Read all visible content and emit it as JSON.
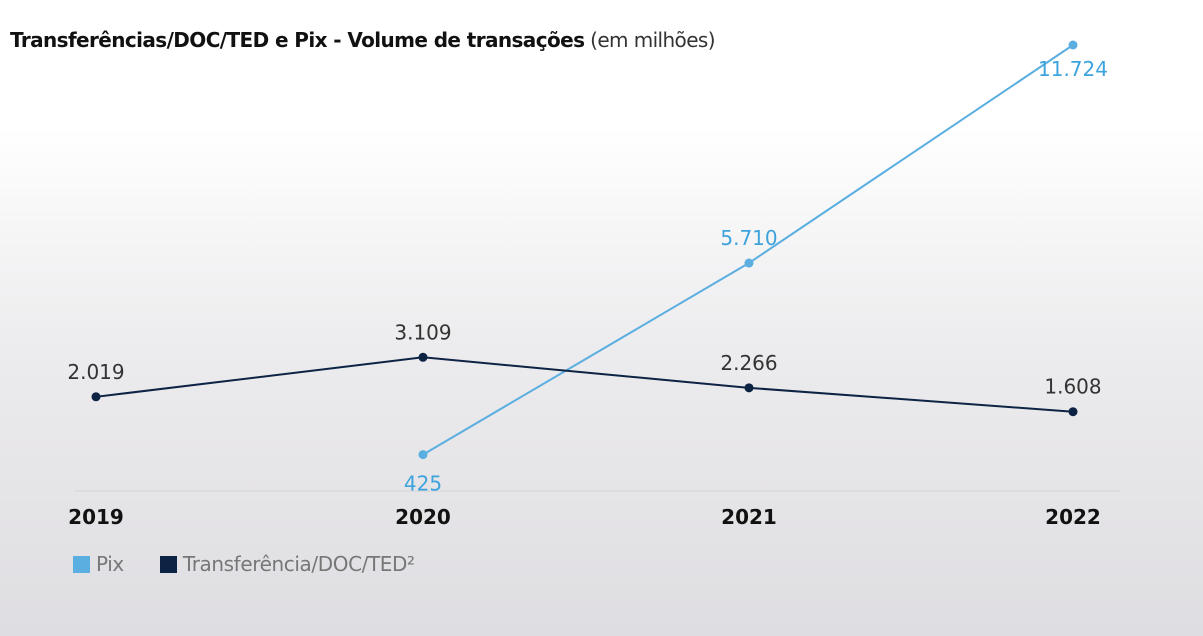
{
  "title": {
    "bold": "Transferências/DOC/TED e Pix - Volume de transações",
    "unit": "(em milhões)"
  },
  "chart_data": {
    "type": "line",
    "title": "Transferências/DOC/TED e Pix - Volume de transações (em milhões)",
    "categories": [
      "2019",
      "2020",
      "2021",
      "2022"
    ],
    "ylim": [
      0,
      12000
    ],
    "grid": false,
    "legend_placement": "bottom-left",
    "series": [
      {
        "name": "Pix",
        "color": "#5aaee0",
        "values": [
          null,
          425,
          5710,
          11724
        ],
        "labels": [
          null,
          "425",
          "5.710",
          "11.724"
        ]
      },
      {
        "name": "Transferência/DOC/TED²",
        "color": "#0d2344",
        "values": [
          2019,
          3109,
          2266,
          1608
        ],
        "labels": [
          "2.019",
          "3.109",
          "2.266",
          "1.608"
        ]
      }
    ]
  }
}
